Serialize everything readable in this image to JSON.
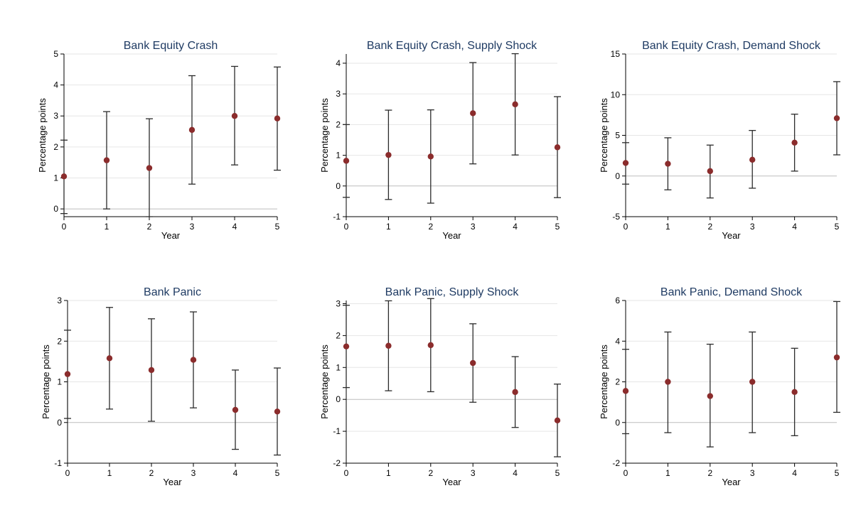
{
  "colors": {
    "marker": "#8b2c2c",
    "errorbar": "#2b2b2b",
    "gridline": "#e6e6e6",
    "zeroline": "#bdbdbd",
    "title": "#1f3b63"
  },
  "chart_data": [
    {
      "type": "scatter",
      "title": "Bank Equity Crash",
      "xlabel": "Year",
      "ylabel": "Percentage points",
      "x": [
        0,
        1,
        2,
        3,
        4,
        5
      ],
      "xlim": [
        0,
        5
      ],
      "ylim": [
        -0.25,
        5
      ],
      "yticks": [
        0,
        1,
        2,
        3,
        4,
        5
      ],
      "estimates": [
        1.05,
        1.57,
        1.32,
        2.55,
        3.0,
        2.92
      ],
      "ci_low": [
        -0.15,
        0.0,
        -0.25,
        0.8,
        1.42,
        1.25
      ],
      "ci_high": [
        2.22,
        3.14,
        2.91,
        4.3,
        4.6,
        4.58
      ],
      "grid": true
    },
    {
      "type": "scatter",
      "title": "Bank Equity Crash, Supply Shock",
      "xlabel": "Year",
      "ylabel": "Percentage points",
      "x": [
        0,
        1,
        2,
        3,
        4,
        5
      ],
      "xlim": [
        0,
        5
      ],
      "ylim": [
        -1,
        4.3
      ],
      "yticks": [
        -1,
        0,
        1,
        2,
        3,
        4
      ],
      "estimates": [
        0.82,
        1.01,
        0.96,
        2.37,
        2.66,
        1.26
      ],
      "ci_low": [
        -0.37,
        -0.44,
        -0.56,
        0.72,
        1.01,
        -0.38
      ],
      "ci_high": [
        2.0,
        2.47,
        2.48,
        4.02,
        4.31,
        2.91
      ],
      "grid": true
    },
    {
      "type": "scatter",
      "title": "Bank Equity Crash, Demand Shock",
      "xlabel": "Year",
      "ylabel": "Percentage points",
      "x": [
        0,
        1,
        2,
        3,
        4,
        5
      ],
      "xlim": [
        0,
        5
      ],
      "ylim": [
        -5,
        15
      ],
      "yticks": [
        -5,
        0,
        5,
        10,
        15
      ],
      "estimates": [
        1.6,
        1.5,
        0.6,
        2.0,
        4.1,
        7.1
      ],
      "ci_low": [
        -1.0,
        -1.7,
        -2.7,
        -1.5,
        0.6,
        2.6
      ],
      "ci_high": [
        4.1,
        4.7,
        3.8,
        5.6,
        7.6,
        11.6
      ],
      "grid": true
    },
    {
      "type": "scatter",
      "title": "Bank Panic",
      "xlabel": "Year",
      "ylabel": "Percentage points",
      "x": [
        0,
        1,
        2,
        3,
        4,
        5
      ],
      "xlim": [
        0,
        5
      ],
      "ylim": [
        -1,
        3
      ],
      "yticks": [
        -1,
        0,
        1,
        2,
        3
      ],
      "estimates": [
        1.19,
        1.58,
        1.29,
        1.54,
        0.31,
        0.27
      ],
      "ci_low": [
        0.1,
        0.33,
        0.03,
        0.36,
        -0.66,
        -0.8
      ],
      "ci_high": [
        2.27,
        2.83,
        2.55,
        2.72,
        1.29,
        1.34
      ],
      "grid": true
    },
    {
      "type": "scatter",
      "title": "Bank Panic, Supply Shock",
      "xlabel": "Year",
      "ylabel": "Percentage points",
      "x": [
        0,
        1,
        2,
        3,
        4,
        5
      ],
      "xlim": [
        0,
        5
      ],
      "ylim": [
        -2,
        3.1
      ],
      "yticks": [
        -2,
        -1,
        0,
        1,
        2,
        3
      ],
      "estimates": [
        1.66,
        1.68,
        1.7,
        1.14,
        0.23,
        -0.66
      ],
      "ci_low": [
        0.37,
        0.27,
        0.24,
        -0.09,
        -0.88,
        -1.8
      ],
      "ci_high": [
        2.95,
        3.09,
        3.16,
        2.37,
        1.34,
        0.48
      ],
      "grid": true
    },
    {
      "type": "scatter",
      "title": "Bank Panic, Demand Shock",
      "xlabel": "Year",
      "ylabel": "Percentage points",
      "x": [
        0,
        1,
        2,
        3,
        4,
        5
      ],
      "xlim": [
        0,
        5
      ],
      "ylim": [
        -2,
        6
      ],
      "yticks": [
        -2,
        0,
        2,
        4,
        6
      ],
      "estimates": [
        1.55,
        2.0,
        1.3,
        2.0,
        1.5,
        3.2
      ],
      "ci_low": [
        -0.55,
        -0.5,
        -1.2,
        -0.5,
        -0.65,
        0.5
      ],
      "ci_high": [
        3.6,
        4.45,
        3.85,
        4.45,
        3.65,
        5.95
      ],
      "grid": true
    }
  ]
}
